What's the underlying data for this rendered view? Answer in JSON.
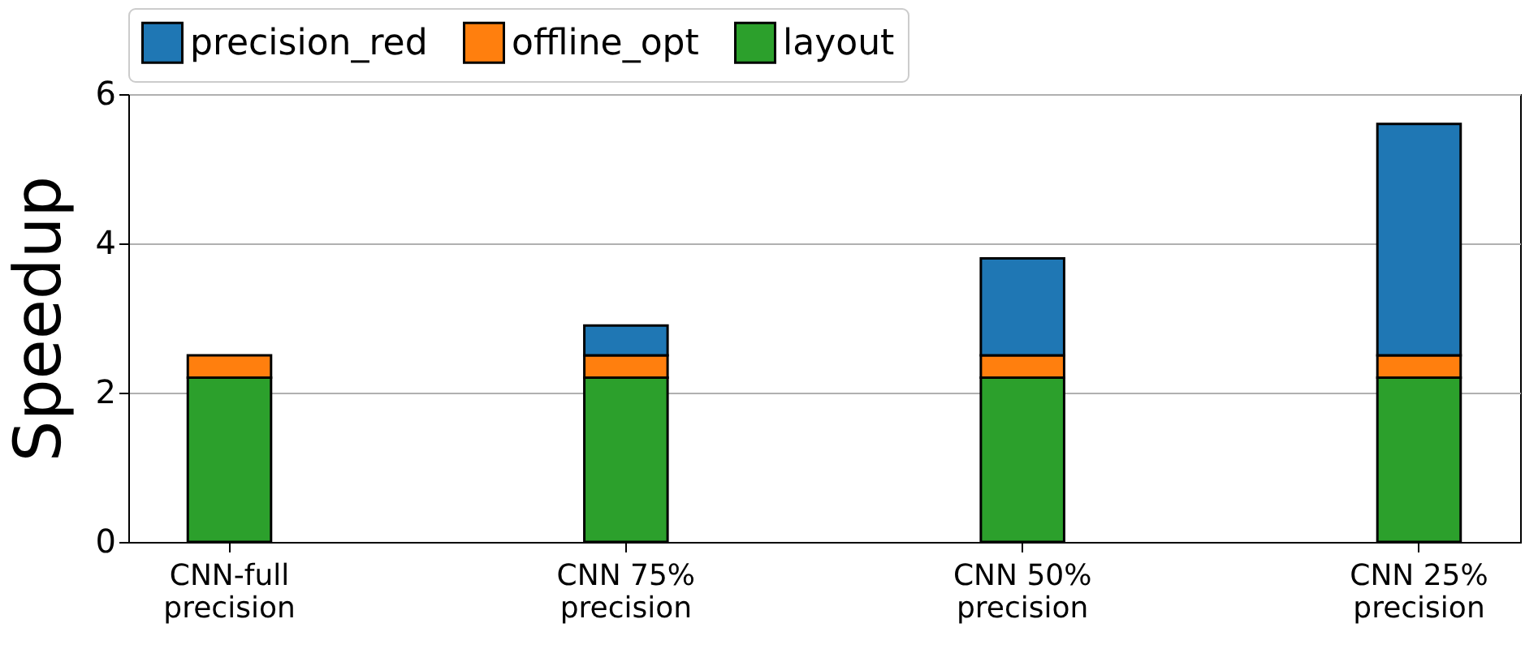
{
  "chart_data": {
    "type": "bar",
    "stacked": true,
    "ylabel": "Speedup",
    "categories": [
      "CNN-full\nprecision",
      "CNN 75%\nprecision",
      "CNN 50%\nprecision",
      "CNN 25%\nprecision"
    ],
    "series": [
      {
        "name": "layout",
        "color": "#2ca02c",
        "values": [
          2.2,
          2.2,
          2.2,
          2.2
        ]
      },
      {
        "name": "offline_opt",
        "color": "#ff7f0e",
        "values": [
          0.3,
          0.3,
          0.3,
          0.3
        ]
      },
      {
        "name": "precision_red",
        "color": "#1f77b4",
        "values": [
          0,
          0.4,
          1.3,
          3.1
        ]
      }
    ],
    "ylim": [
      0,
      6
    ],
    "yticks": [
      0,
      2,
      4,
      6
    ],
    "grid": "y",
    "legend": "top"
  }
}
